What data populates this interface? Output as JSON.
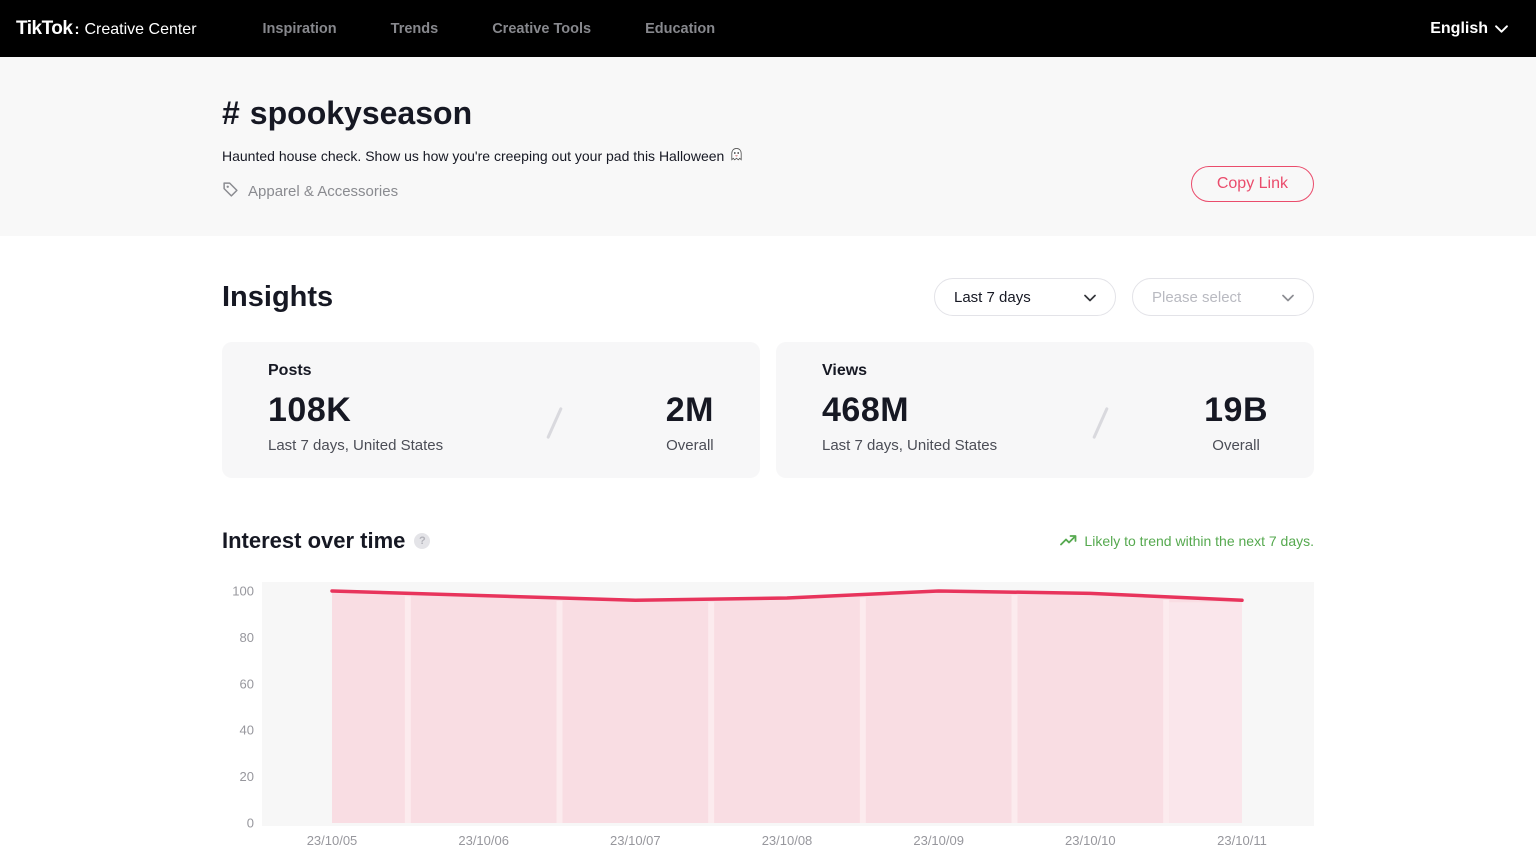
{
  "nav": {
    "brand": {
      "name": "TikTok",
      "separator": ":",
      "suffix": "Creative Center"
    },
    "items": [
      {
        "label": "Inspiration"
      },
      {
        "label": "Trends"
      },
      {
        "label": "Creative Tools"
      },
      {
        "label": "Education"
      }
    ],
    "language": "English"
  },
  "header": {
    "hash": "#",
    "title": "spookyseason",
    "description": "Haunted house check. Show us how you're creeping out your pad this Halloween",
    "description_icon": "ghost-emoji",
    "category": "Apparel & Accessories",
    "copy_link_label": "Copy Link"
  },
  "insights": {
    "title": "Insights",
    "filters": {
      "period_value": "Last 7 days",
      "region_placeholder": "Please select"
    },
    "cards": [
      {
        "label": "Posts",
        "primary_value": "108K",
        "primary_caption": "Last 7 days, United States",
        "secondary_value": "2M",
        "secondary_caption": "Overall"
      },
      {
        "label": "Views",
        "primary_value": "468M",
        "primary_caption": "Last 7 days, United States",
        "secondary_value": "19B",
        "secondary_caption": "Overall"
      }
    ]
  },
  "chart_section": {
    "title": "Interest over time",
    "help_glyph": "?",
    "trend_note": "Likely to trend within the next 7 days."
  },
  "chart_data": {
    "type": "area",
    "title": "Interest over time",
    "x": [
      "23/10/05",
      "23/10/06",
      "23/10/07",
      "23/10/08",
      "23/10/09",
      "23/10/10",
      "23/10/11"
    ],
    "values": [
      100,
      98,
      96,
      97,
      100,
      99,
      96
    ],
    "ylim": [
      0,
      100
    ],
    "yticks": [
      0,
      20,
      40,
      60,
      80,
      100
    ],
    "grid": false,
    "legend": "none",
    "xlabel": "",
    "ylabel": ""
  },
  "colors": {
    "accent_red": "#ea4c6c",
    "trend_green": "#56a94f",
    "chart_line": "#e8345c",
    "chart_fill": "#f9dde3",
    "chart_fill_gap": "#fcebee",
    "chart_bg": "#f7f7f7",
    "axis_label": "#97979d"
  }
}
